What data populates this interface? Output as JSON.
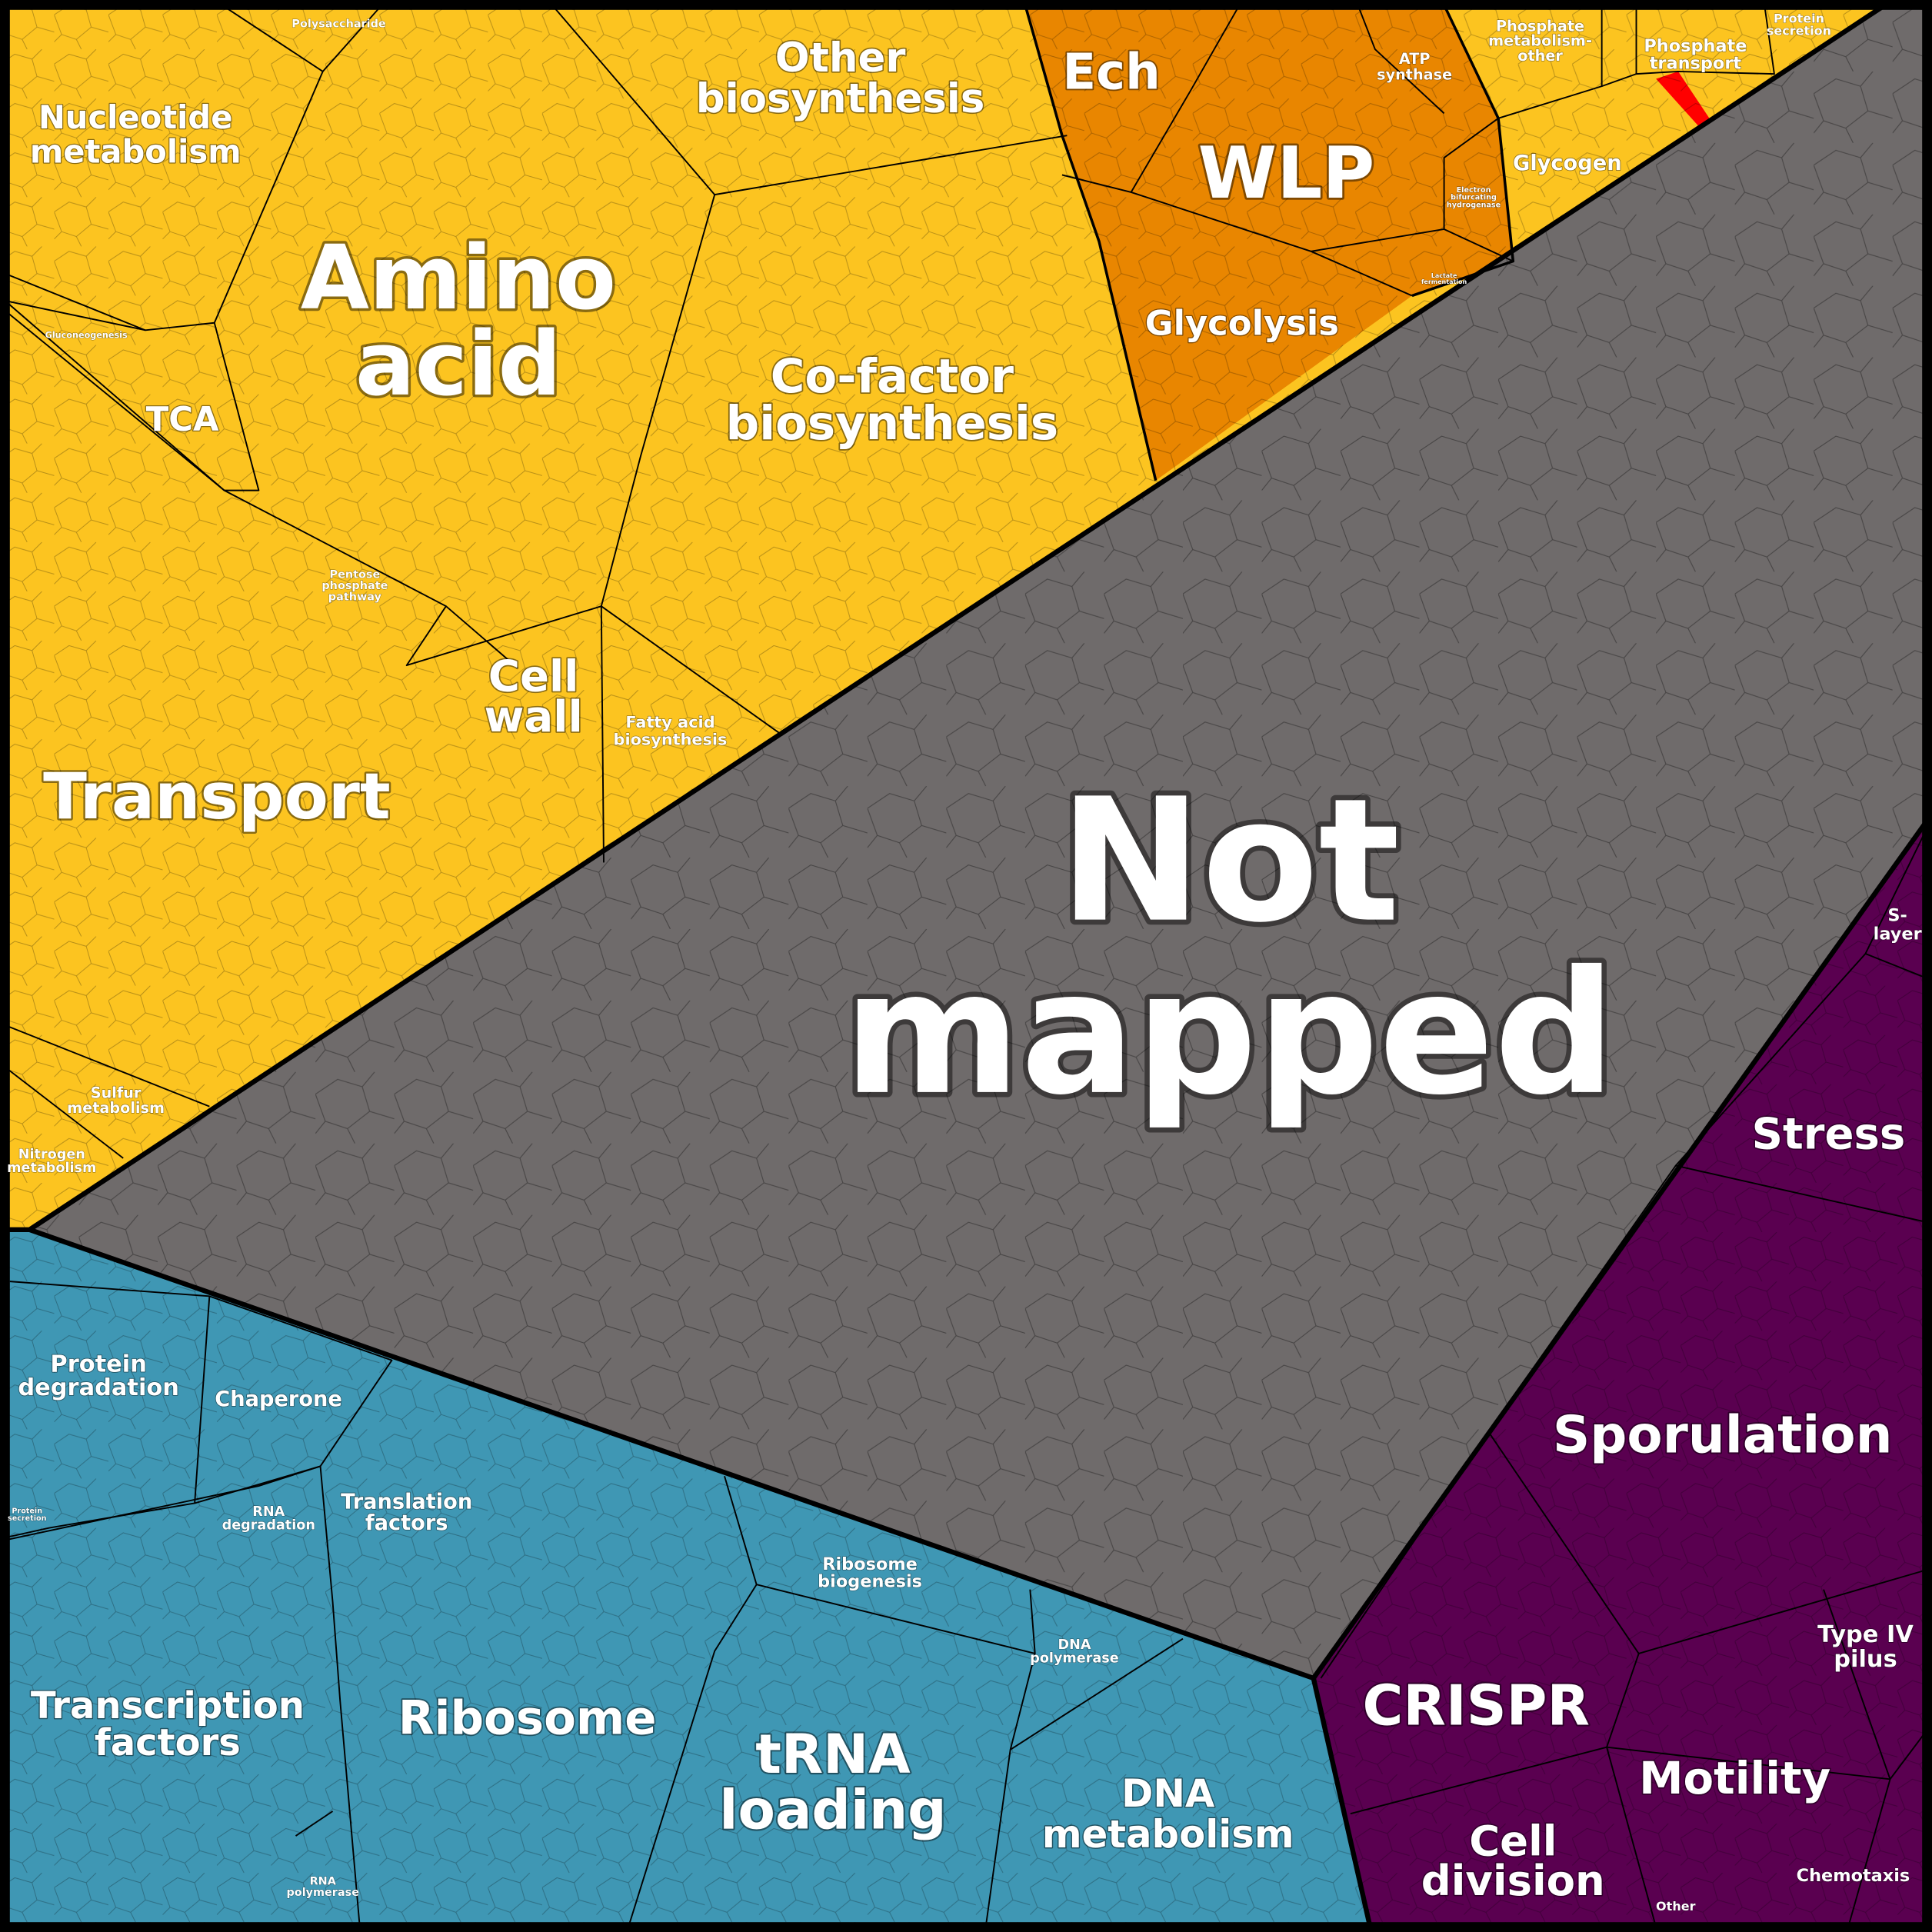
{
  "colors": {
    "metabolism": "#FCC420",
    "energy": "#E98600",
    "phosphate_transport": "#FF0000",
    "not_mapped": "#6F6B6B",
    "information": "#3F97B4",
    "cellular": "#5A0050"
  },
  "labels": {
    "nucleotide_metabolism": [
      "Nucleotide",
      "metabolism"
    ],
    "polysaccharide": [
      "Polysaccharide"
    ],
    "other_biosynthesis": [
      "Other",
      "biosynthesis"
    ],
    "ech": [
      "Ech"
    ],
    "wlp": [
      "WLP"
    ],
    "atp_synthase": [
      "ATP",
      "synthase"
    ],
    "phosphate_metabolism_other": [
      "Phosphate",
      "metabolism-",
      "other"
    ],
    "phosphate_transport": [
      "Phosphate",
      "transport"
    ],
    "protein_secretion_top": [
      "Protein",
      "secretion"
    ],
    "glycogen": [
      "Glycogen"
    ],
    "electron_bifurcating_hydrogenase": [
      "Electron",
      "bifurcating",
      "hydrogenase"
    ],
    "lactate_fermentation": [
      "Lactate",
      "fermentation"
    ],
    "glycolysis": [
      "Glycolysis"
    ],
    "amino_acid": [
      "Amino",
      "acid"
    ],
    "gluconeogenesis": [
      "Gluconeogenesis"
    ],
    "tca": [
      "TCA"
    ],
    "cofactor_biosynthesis": [
      "Co-factor",
      "biosynthesis"
    ],
    "pentose_phosphate_pathway": [
      "Pentose",
      "phosphate",
      "pathway"
    ],
    "cell_wall": [
      "Cell",
      "wall"
    ],
    "fatty_acid_biosynthesis": [
      "Fatty acid",
      "biosynthesis"
    ],
    "transport": [
      "Transport"
    ],
    "sulfur_metabolism": [
      "Sulfur",
      "metabolism"
    ],
    "nitrogen_metabolism": [
      "Nitrogen",
      "metabolism"
    ],
    "not_mapped": [
      "Not",
      "mapped"
    ],
    "s_layer": [
      "S-",
      "layer"
    ],
    "stress": [
      "Stress"
    ],
    "sporulation": [
      "Sporulation"
    ],
    "crispr": [
      "CRISPR"
    ],
    "type_iv_pilus": [
      "Type IV",
      "pilus"
    ],
    "motility": [
      "Motility"
    ],
    "chemotaxis": [
      "Chemotaxis"
    ],
    "cell_division": [
      "Cell",
      "division"
    ],
    "other_cellular": [
      "Other"
    ],
    "protein_degradation": [
      "Protein",
      "degradation"
    ],
    "chaperone": [
      "Chaperone"
    ],
    "protein_secretion_bottom": [
      "Protein",
      "secretion"
    ],
    "rna_degradation": [
      "RNA",
      "degradation"
    ],
    "translation_factors": [
      "Translation",
      "factors"
    ],
    "ribosome": [
      "Ribosome"
    ],
    "ribosome_biogenesis": [
      "Ribosome",
      "biogenesis"
    ],
    "dna_polymerase": [
      "DNA",
      "polymerase"
    ],
    "transcription_factors": [
      "Transcription",
      "factors"
    ],
    "trna_loading": [
      "tRNA",
      "loading"
    ],
    "dna_metabolism": [
      "DNA",
      "metabolism"
    ],
    "rna_polymerase": [
      "RNA",
      "polymerase"
    ]
  }
}
